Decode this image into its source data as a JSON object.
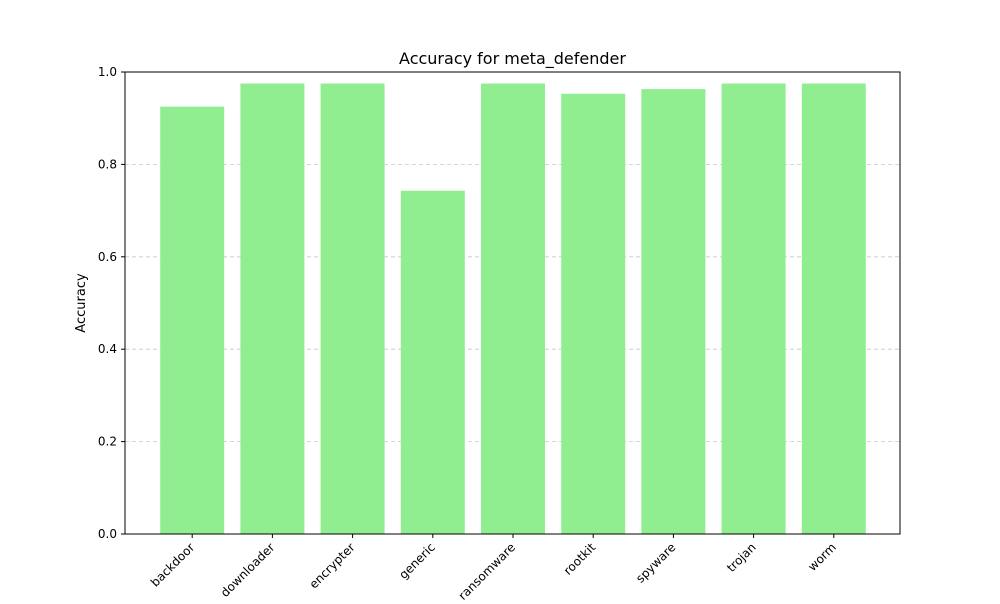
{
  "chart_data": {
    "type": "bar",
    "title": "Accuracy for meta_defender",
    "xlabel": "",
    "ylabel": "Accuracy",
    "categories": [
      "backdoor",
      "downloader",
      "encrypter",
      "generic",
      "ransomware",
      "rootkit",
      "spyware",
      "trojan",
      "worm"
    ],
    "values": [
      0.925,
      0.975,
      0.975,
      0.743,
      0.975,
      0.953,
      0.963,
      0.975,
      0.975
    ],
    "ylim": [
      0,
      1.0
    ],
    "yticks": [
      "0.0",
      "0.2",
      "0.4",
      "0.6",
      "0.8",
      "1.0"
    ],
    "grid": "y-dashed",
    "colors": {
      "bar": "#90ee90",
      "grid": "#c8c8c8",
      "axis": "#000000"
    }
  }
}
